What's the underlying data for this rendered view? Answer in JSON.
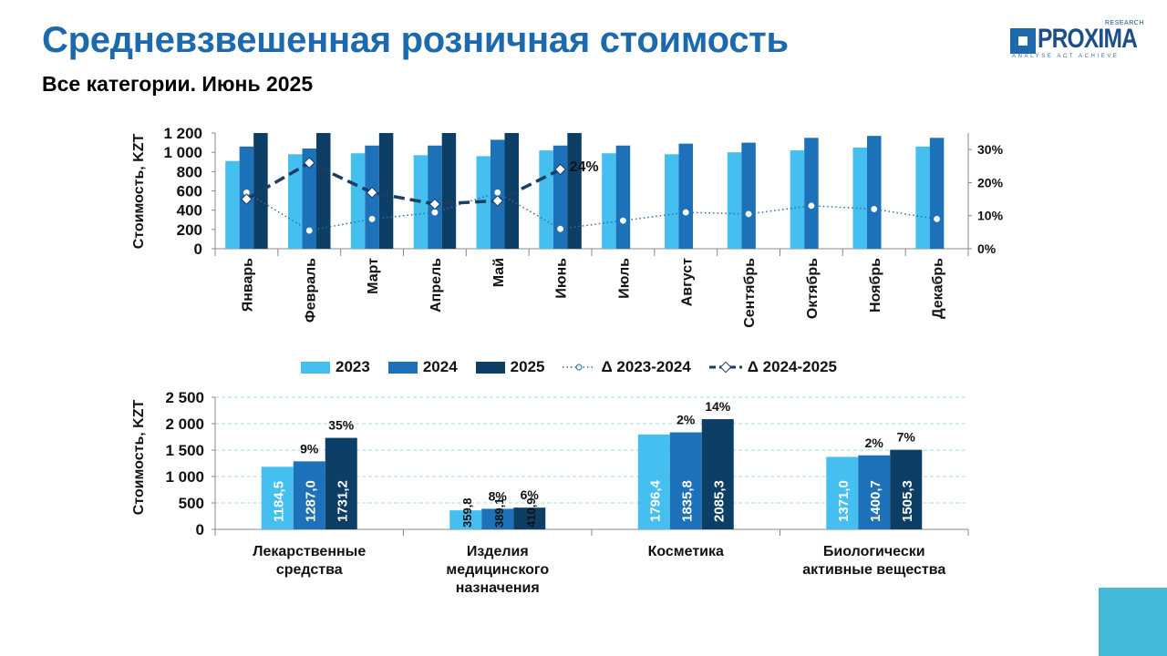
{
  "header": {
    "title": "Средневзвешенная розничная стоимость",
    "subtitle": "Все категории. Июнь 2025"
  },
  "logo": {
    "brand": "PROXIMA",
    "superscript": "RESEARCH",
    "tagline": "ANALYSE ACT ACHIEVE"
  },
  "colors": {
    "title": "#1c6aad",
    "c2023": "#45bff0",
    "c2024": "#1d71b8",
    "c2025": "#0d3f66",
    "delta1": "#2e6da3",
    "delta2": "#1c3d63",
    "corner": "#45b9d9"
  },
  "legend": {
    "items": [
      {
        "label": "2023",
        "kind": "bar",
        "color": "#45bff0"
      },
      {
        "label": "2024",
        "kind": "bar",
        "color": "#1d71b8"
      },
      {
        "label": "2025",
        "kind": "bar",
        "color": "#0d3f66"
      },
      {
        "label": "Δ 2023-2024",
        "kind": "dotted-line",
        "color": "#2e6da3"
      },
      {
        "label": "Δ 2024-2025",
        "kind": "dashed-line",
        "color": "#1c3d63"
      }
    ]
  },
  "chart_data": [
    {
      "type": "bar",
      "categories": [
        "Январь",
        "Февраль",
        "Март",
        "Апрель",
        "Май",
        "Июнь",
        "Июль",
        "Август",
        "Сентябрь",
        "Октябрь",
        "Ноябрь",
        "Декабрь"
      ],
      "ylabel": "Стоимость, KZT",
      "ylim": [
        0,
        1200
      ],
      "yticks": [
        "0",
        "200",
        "400",
        "600",
        "800",
        "1 000",
        "1 200"
      ],
      "y2lim": [
        0,
        35
      ],
      "y2ticks": [
        "0%",
        "10%",
        "20%",
        "30%"
      ],
      "grid": false,
      "series": [
        {
          "name": "2023",
          "type": "bar",
          "values": [
            910,
            980,
            990,
            970,
            960,
            1020,
            990,
            980,
            1000,
            1020,
            1050,
            1060
          ]
        },
        {
          "name": "2024",
          "type": "bar",
          "values": [
            1060,
            1040,
            1070,
            1070,
            1130,
            1070,
            1070,
            1090,
            1100,
            1150,
            1170,
            1150
          ]
        },
        {
          "name": "2025",
          "type": "bar",
          "values": [
            1250,
            1310,
            1250,
            1220,
            1300,
            1320,
            null,
            null,
            null,
            null,
            null,
            null
          ]
        },
        {
          "name": "Δ 2023-2024",
          "type": "line",
          "axis": "right",
          "values": [
            17,
            5.5,
            9,
            11,
            17,
            6,
            8.5,
            11,
            10.5,
            13,
            12,
            9
          ]
        },
        {
          "name": "Δ 2024-2025",
          "type": "line",
          "axis": "right",
          "values": [
            15,
            26,
            17,
            13.5,
            14.5,
            24,
            null,
            null,
            null,
            null,
            null,
            null
          ]
        }
      ],
      "annotations": [
        {
          "text": "24%",
          "category": "Июнь",
          "series": "Δ 2024-2025"
        }
      ]
    },
    {
      "type": "bar",
      "categories": [
        "Лекарственные средства",
        "Изделия медицинского назначения",
        "Косметика",
        "Биологически активные вещества"
      ],
      "ylabel": "Стоимость, KZT",
      "ylim": [
        0,
        2500
      ],
      "yticks": [
        "0",
        "500",
        "1 000",
        "1 500",
        "2 000",
        "2 500"
      ],
      "grid": true,
      "series": [
        {
          "name": "2023",
          "values": [
            1184.5,
            359.8,
            1796.4,
            1371.0
          ],
          "labels": [
            "1184,5",
            "359,8",
            "1796,4",
            "1371,0"
          ]
        },
        {
          "name": "2024",
          "values": [
            1287.0,
            389.1,
            1835.8,
            1400.7
          ],
          "labels": [
            "1287,0",
            "389,1",
            "1835,8",
            "1400,7"
          ]
        },
        {
          "name": "2025",
          "values": [
            1731.2,
            410.9,
            2085.3,
            1505.3
          ],
          "labels": [
            "1731,2",
            "410,9",
            "2085,3",
            "1505,3"
          ]
        }
      ],
      "growth_labels": {
        "2024": [
          "9%",
          "8%",
          "2%",
          "2%"
        ],
        "2025": [
          "35%",
          "6%",
          "14%",
          "7%"
        ]
      }
    }
  ]
}
